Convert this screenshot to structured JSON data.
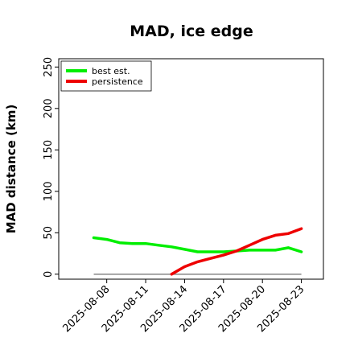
{
  "chart_data": {
    "type": "line",
    "title": "MAD, ice edge",
    "xlabel": "",
    "ylabel": "MAD distance (km)",
    "ylim": [
      -6,
      260
    ],
    "yticks": [
      0,
      50,
      100,
      150,
      200,
      250
    ],
    "x_tick_labels": [
      "2025-08-08",
      "2025-08-11",
      "2025-08-14",
      "2025-08-17",
      "2025-08-20",
      "2025-08-23"
    ],
    "x_tick_days": [
      8,
      11,
      14,
      17,
      20,
      23
    ],
    "xlim_days": [
      4.3,
      24.7
    ],
    "grid": false,
    "legend_position": "upper-left",
    "series": [
      {
        "name": "best est.",
        "color": "#00ee00",
        "x_days": [
          7,
          8,
          9,
          10,
          11,
          12,
          13,
          14,
          15,
          16,
          17,
          18,
          19,
          20,
          21,
          22,
          23
        ],
        "values": [
          44,
          42,
          38,
          37,
          37,
          35,
          33,
          30,
          27,
          27,
          27,
          28,
          29,
          29,
          29,
          32,
          27
        ]
      },
      {
        "name": "persistence",
        "color": "#ee0000",
        "x_days": [
          13,
          14,
          15,
          16,
          17,
          18,
          19,
          20,
          21,
          22,
          23
        ],
        "values": [
          0,
          9,
          15,
          19,
          23,
          28,
          35,
          42,
          47,
          49,
          55
        ]
      }
    ],
    "reference_line": {
      "value": 0,
      "x_days": [
        7,
        23
      ],
      "color": "#888888"
    }
  }
}
